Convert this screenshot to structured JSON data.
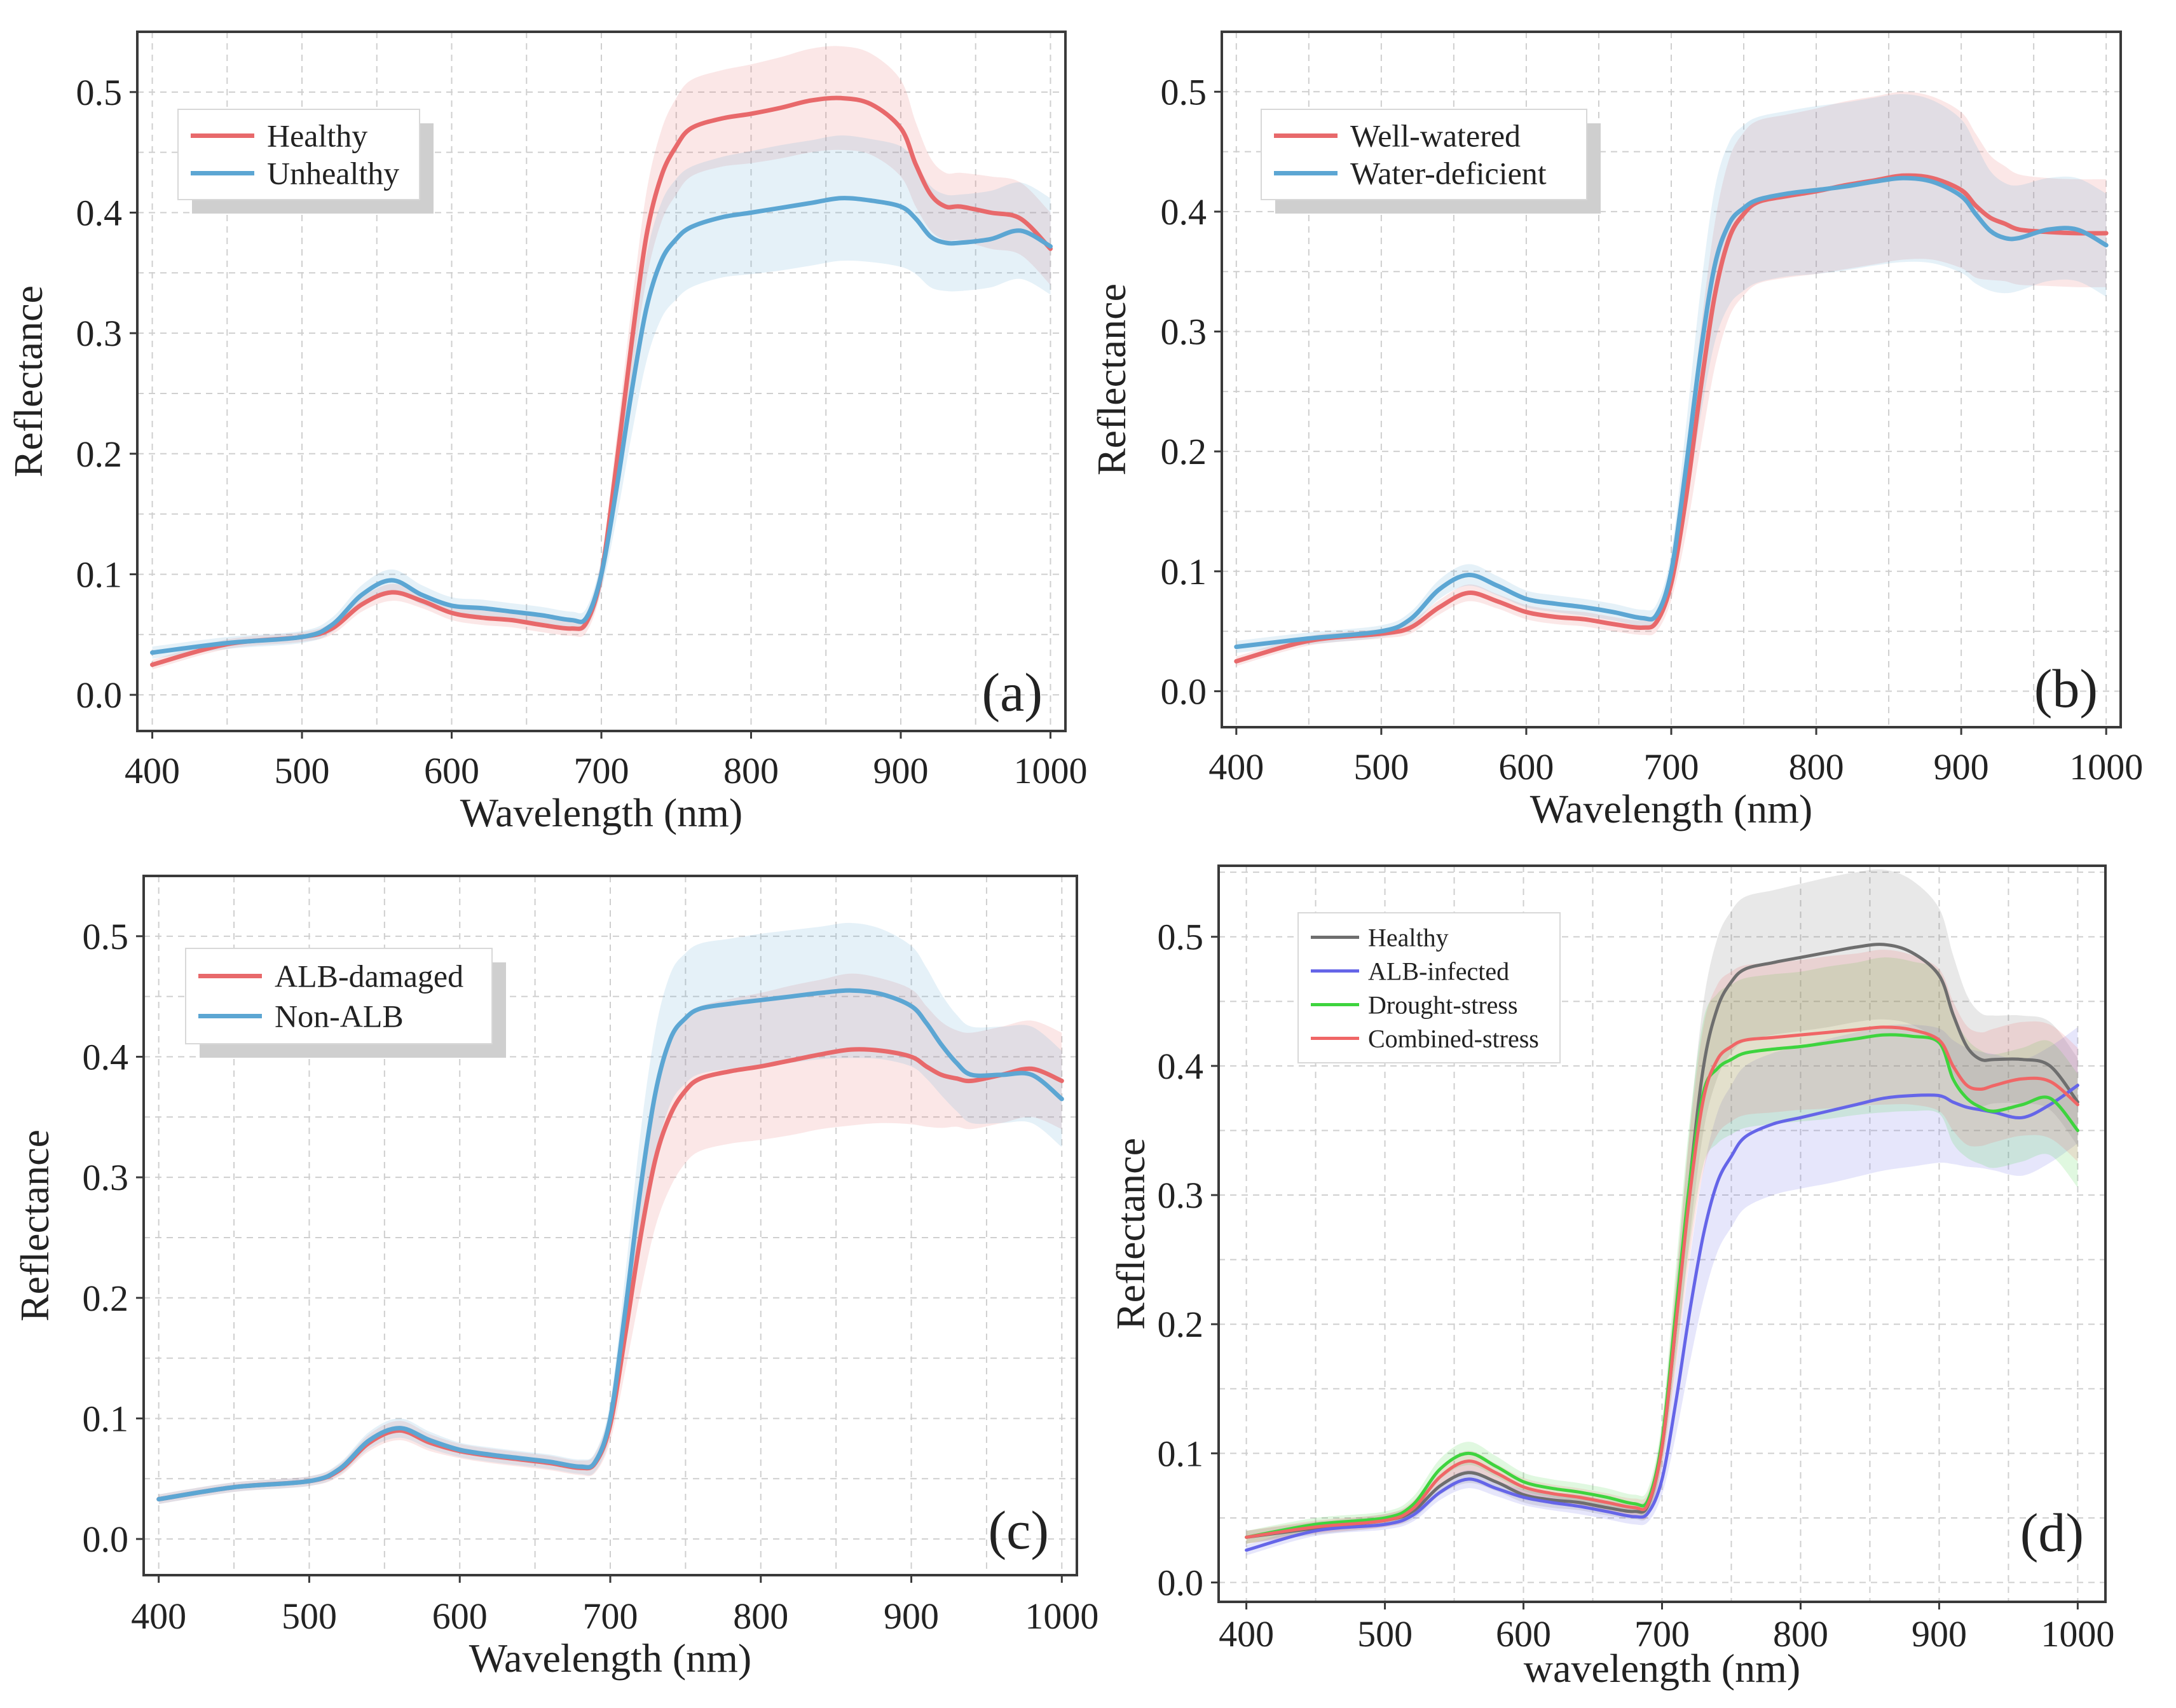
{
  "chart_data": [
    {
      "type": "line",
      "panel_label": "(a)",
      "xlabel": "Wavelength (nm)",
      "ylabel": "Reflectance",
      "xlim": [
        390,
        1010
      ],
      "ylim": [
        -0.03,
        0.55
      ],
      "xticks": [
        "400",
        "500",
        "600",
        "700",
        "800",
        "900",
        "1000"
      ],
      "yticks": [
        "0.0",
        "0.1",
        "0.2",
        "0.3",
        "0.4",
        "0.5"
      ],
      "grid": true,
      "legend_position": "top-left",
      "x": [
        400,
        450,
        500,
        520,
        540,
        560,
        580,
        600,
        620,
        640,
        660,
        680,
        690,
        700,
        710,
        720,
        730,
        740,
        750,
        760,
        780,
        800,
        820,
        840,
        860,
        880,
        900,
        910,
        920,
        930,
        940,
        960,
        980,
        1000
      ],
      "series": [
        {
          "name": "Healthy",
          "color": "#e8696b",
          "values": [
            0.025,
            0.042,
            0.048,
            0.055,
            0.075,
            0.085,
            0.078,
            0.068,
            0.064,
            0.062,
            0.058,
            0.055,
            0.06,
            0.1,
            0.19,
            0.29,
            0.38,
            0.43,
            0.455,
            0.47,
            0.478,
            0.482,
            0.487,
            0.493,
            0.495,
            0.49,
            0.47,
            0.44,
            0.415,
            0.405,
            0.405,
            0.4,
            0.395,
            0.37
          ],
          "spread": [
            0.004,
            0.004,
            0.004,
            0.005,
            0.006,
            0.007,
            0.006,
            0.006,
            0.006,
            0.006,
            0.006,
            0.006,
            0.008,
            0.012,
            0.022,
            0.03,
            0.036,
            0.038,
            0.04,
            0.04,
            0.04,
            0.041,
            0.042,
            0.043,
            0.043,
            0.042,
            0.04,
            0.035,
            0.03,
            0.028,
            0.028,
            0.03,
            0.03,
            0.03
          ]
        },
        {
          "name": "Unhealthy",
          "color": "#5ca6d3",
          "values": [
            0.035,
            0.043,
            0.048,
            0.058,
            0.083,
            0.095,
            0.083,
            0.074,
            0.072,
            0.069,
            0.066,
            0.062,
            0.064,
            0.1,
            0.17,
            0.25,
            0.32,
            0.36,
            0.378,
            0.388,
            0.396,
            0.4,
            0.404,
            0.408,
            0.412,
            0.41,
            0.405,
            0.395,
            0.38,
            0.375,
            0.375,
            0.378,
            0.385,
            0.372
          ],
          "spread": [
            0.005,
            0.005,
            0.005,
            0.006,
            0.008,
            0.009,
            0.008,
            0.007,
            0.007,
            0.007,
            0.007,
            0.007,
            0.008,
            0.013,
            0.025,
            0.036,
            0.044,
            0.048,
            0.05,
            0.05,
            0.05,
            0.051,
            0.052,
            0.052,
            0.052,
            0.051,
            0.05,
            0.046,
            0.042,
            0.04,
            0.04,
            0.04,
            0.04,
            0.04
          ]
        }
      ]
    },
    {
      "type": "line",
      "panel_label": "(b)",
      "xlabel": "Wavelength (nm)",
      "ylabel": "Reflectance",
      "xlim": [
        390,
        1010
      ],
      "ylim": [
        -0.03,
        0.55
      ],
      "xticks": [
        "400",
        "500",
        "600",
        "700",
        "800",
        "900",
        "1000"
      ],
      "yticks": [
        "0.0",
        "0.1",
        "0.2",
        "0.3",
        "0.4",
        "0.5"
      ],
      "grid": true,
      "legend_position": "top-left",
      "x": [
        400,
        450,
        500,
        520,
        540,
        560,
        580,
        600,
        620,
        640,
        660,
        680,
        690,
        700,
        710,
        720,
        730,
        740,
        750,
        760,
        780,
        800,
        820,
        840,
        860,
        880,
        900,
        910,
        920,
        930,
        940,
        960,
        980,
        1000
      ],
      "series": [
        {
          "name": "Well-watered",
          "color": "#e8696b",
          "values": [
            0.025,
            0.042,
            0.048,
            0.053,
            0.07,
            0.082,
            0.075,
            0.066,
            0.062,
            0.06,
            0.056,
            0.053,
            0.058,
            0.09,
            0.16,
            0.25,
            0.33,
            0.378,
            0.398,
            0.408,
            0.413,
            0.417,
            0.422,
            0.426,
            0.43,
            0.428,
            0.418,
            0.405,
            0.395,
            0.39,
            0.385,
            0.383,
            0.382,
            0.382
          ],
          "spread": [
            0.004,
            0.004,
            0.004,
            0.005,
            0.006,
            0.007,
            0.006,
            0.006,
            0.006,
            0.006,
            0.006,
            0.006,
            0.008,
            0.014,
            0.03,
            0.048,
            0.06,
            0.066,
            0.068,
            0.068,
            0.068,
            0.069,
            0.07,
            0.07,
            0.07,
            0.068,
            0.065,
            0.06,
            0.052,
            0.048,
            0.046,
            0.045,
            0.045,
            0.045
          ]
        },
        {
          "name": "Water-deficient",
          "color": "#5ca6d3",
          "values": [
            0.037,
            0.044,
            0.05,
            0.06,
            0.085,
            0.097,
            0.088,
            0.077,
            0.073,
            0.07,
            0.066,
            0.061,
            0.064,
            0.1,
            0.185,
            0.28,
            0.355,
            0.39,
            0.403,
            0.41,
            0.415,
            0.418,
            0.421,
            0.425,
            0.428,
            0.425,
            0.413,
            0.398,
            0.384,
            0.378,
            0.378,
            0.385,
            0.385,
            0.372
          ],
          "spread": [
            0.005,
            0.005,
            0.005,
            0.006,
            0.008,
            0.009,
            0.008,
            0.007,
            0.007,
            0.007,
            0.007,
            0.007,
            0.009,
            0.016,
            0.034,
            0.052,
            0.064,
            0.068,
            0.069,
            0.069,
            0.069,
            0.07,
            0.07,
            0.07,
            0.07,
            0.068,
            0.064,
            0.058,
            0.05,
            0.046,
            0.044,
            0.043,
            0.043,
            0.043
          ]
        }
      ]
    },
    {
      "type": "line",
      "panel_label": "(c)",
      "xlabel": "Wavelength (nm)",
      "ylabel": "Reflectance",
      "xlim": [
        390,
        1010
      ],
      "ylim": [
        -0.03,
        0.55
      ],
      "xticks": [
        "400",
        "500",
        "600",
        "700",
        "800",
        "900",
        "1000"
      ],
      "yticks": [
        "0.0",
        "0.1",
        "0.2",
        "0.3",
        "0.4",
        "0.5"
      ],
      "grid": true,
      "legend_position": "top-left",
      "x": [
        400,
        450,
        500,
        520,
        540,
        560,
        580,
        600,
        620,
        640,
        660,
        680,
        690,
        700,
        710,
        720,
        730,
        740,
        750,
        760,
        780,
        800,
        820,
        840,
        860,
        880,
        900,
        910,
        920,
        930,
        940,
        960,
        980,
        1000
      ],
      "series": [
        {
          "name": "ALB-damaged",
          "color": "#e8696b",
          "values": [
            0.033,
            0.043,
            0.048,
            0.057,
            0.08,
            0.09,
            0.08,
            0.073,
            0.069,
            0.066,
            0.063,
            0.059,
            0.063,
            0.095,
            0.17,
            0.25,
            0.315,
            0.352,
            0.372,
            0.382,
            0.388,
            0.392,
            0.397,
            0.402,
            0.406,
            0.405,
            0.4,
            0.392,
            0.385,
            0.382,
            0.38,
            0.385,
            0.39,
            0.38
          ],
          "spread": [
            0.004,
            0.004,
            0.004,
            0.005,
            0.007,
            0.008,
            0.007,
            0.006,
            0.006,
            0.006,
            0.006,
            0.006,
            0.008,
            0.014,
            0.03,
            0.046,
            0.056,
            0.06,
            0.06,
            0.06,
            0.06,
            0.061,
            0.062,
            0.062,
            0.063,
            0.06,
            0.056,
            0.05,
            0.044,
            0.04,
            0.04,
            0.04,
            0.04,
            0.04
          ]
        },
        {
          "name": "Non-ALB",
          "color": "#5ca6d3",
          "values": [
            0.033,
            0.043,
            0.048,
            0.058,
            0.082,
            0.092,
            0.082,
            0.074,
            0.07,
            0.067,
            0.064,
            0.06,
            0.064,
            0.1,
            0.19,
            0.29,
            0.37,
            0.415,
            0.432,
            0.44,
            0.444,
            0.447,
            0.45,
            0.453,
            0.455,
            0.452,
            0.442,
            0.428,
            0.41,
            0.395,
            0.385,
            0.385,
            0.385,
            0.365
          ],
          "spread": [
            0.004,
            0.004,
            0.004,
            0.005,
            0.007,
            0.008,
            0.007,
            0.006,
            0.006,
            0.006,
            0.006,
            0.006,
            0.008,
            0.014,
            0.03,
            0.046,
            0.052,
            0.054,
            0.054,
            0.054,
            0.054,
            0.055,
            0.055,
            0.055,
            0.056,
            0.054,
            0.05,
            0.046,
            0.042,
            0.04,
            0.04,
            0.04,
            0.04,
            0.04
          ]
        }
      ]
    },
    {
      "type": "line",
      "panel_label": "(d)",
      "xlabel": "wavelength (nm)",
      "ylabel": "Reflectance",
      "xlim": [
        380,
        1020
      ],
      "ylim": [
        -0.015,
        0.555
      ],
      "xticks": [
        "400",
        "500",
        "600",
        "700",
        "800",
        "900",
        "1000"
      ],
      "yticks": [
        "0.0",
        "0.1",
        "0.2",
        "0.3",
        "0.4",
        "0.5"
      ],
      "grid": true,
      "legend_position": "top-left",
      "x": [
        400,
        450,
        500,
        520,
        540,
        560,
        580,
        600,
        620,
        640,
        660,
        680,
        690,
        700,
        710,
        720,
        730,
        740,
        750,
        760,
        780,
        800,
        820,
        840,
        860,
        880,
        900,
        910,
        920,
        930,
        940,
        960,
        980,
        1000
      ],
      "series": [
        {
          "name": "Healthy",
          "color": "#6e6e6e",
          "values": [
            0.035,
            0.042,
            0.048,
            0.055,
            0.075,
            0.085,
            0.078,
            0.068,
            0.064,
            0.062,
            0.058,
            0.055,
            0.06,
            0.105,
            0.2,
            0.31,
            0.4,
            0.445,
            0.465,
            0.475,
            0.48,
            0.484,
            0.488,
            0.492,
            0.494,
            0.488,
            0.47,
            0.44,
            0.415,
            0.405,
            0.405,
            0.405,
            0.4,
            0.372
          ],
          "spread": [
            0.005,
            0.005,
            0.005,
            0.006,
            0.007,
            0.008,
            0.007,
            0.006,
            0.006,
            0.006,
            0.006,
            0.006,
            0.008,
            0.014,
            0.03,
            0.042,
            0.05,
            0.054,
            0.055,
            0.056,
            0.056,
            0.057,
            0.058,
            0.058,
            0.058,
            0.056,
            0.052,
            0.046,
            0.04,
            0.036,
            0.034,
            0.034,
            0.034,
            0.034
          ]
        },
        {
          "name": "ALB-infected",
          "color": "#6565e8",
          "values": [
            0.025,
            0.04,
            0.045,
            0.052,
            0.07,
            0.08,
            0.073,
            0.066,
            0.062,
            0.059,
            0.055,
            0.051,
            0.054,
            0.08,
            0.14,
            0.21,
            0.27,
            0.31,
            0.33,
            0.345,
            0.355,
            0.36,
            0.365,
            0.37,
            0.375,
            0.377,
            0.377,
            0.372,
            0.368,
            0.366,
            0.364,
            0.36,
            0.37,
            0.385
          ],
          "spread": [
            0.004,
            0.004,
            0.004,
            0.005,
            0.006,
            0.007,
            0.006,
            0.006,
            0.006,
            0.006,
            0.006,
            0.006,
            0.007,
            0.012,
            0.026,
            0.04,
            0.05,
            0.054,
            0.055,
            0.055,
            0.055,
            0.055,
            0.056,
            0.056,
            0.056,
            0.055,
            0.052,
            0.048,
            0.046,
            0.045,
            0.045,
            0.045,
            0.045,
            0.045
          ]
        },
        {
          "name": "Drought-stress",
          "color": "#3ed43e",
          "values": [
            0.035,
            0.045,
            0.05,
            0.06,
            0.088,
            0.1,
            0.09,
            0.078,
            0.073,
            0.07,
            0.066,
            0.061,
            0.064,
            0.11,
            0.21,
            0.31,
            0.38,
            0.398,
            0.405,
            0.41,
            0.413,
            0.415,
            0.418,
            0.421,
            0.424,
            0.423,
            0.418,
            0.39,
            0.375,
            0.368,
            0.365,
            0.37,
            0.375,
            0.35
          ],
          "spread": [
            0.005,
            0.005,
            0.005,
            0.006,
            0.008,
            0.009,
            0.008,
            0.007,
            0.007,
            0.007,
            0.007,
            0.007,
            0.009,
            0.016,
            0.034,
            0.048,
            0.056,
            0.058,
            0.058,
            0.058,
            0.058,
            0.058,
            0.059,
            0.059,
            0.06,
            0.058,
            0.055,
            0.05,
            0.046,
            0.044,
            0.044,
            0.044,
            0.044,
            0.044
          ]
        },
        {
          "name": "Combined-stress",
          "color": "#f06666",
          "values": [
            0.035,
            0.043,
            0.048,
            0.057,
            0.082,
            0.094,
            0.085,
            0.074,
            0.069,
            0.066,
            0.062,
            0.058,
            0.061,
            0.105,
            0.2,
            0.3,
            0.375,
            0.405,
            0.415,
            0.42,
            0.422,
            0.424,
            0.426,
            0.428,
            0.43,
            0.428,
            0.42,
            0.4,
            0.385,
            0.382,
            0.385,
            0.39,
            0.388,
            0.37
          ],
          "spread": [
            0.005,
            0.005,
            0.005,
            0.006,
            0.007,
            0.008,
            0.007,
            0.007,
            0.007,
            0.007,
            0.007,
            0.007,
            0.009,
            0.016,
            0.034,
            0.048,
            0.056,
            0.058,
            0.058,
            0.058,
            0.058,
            0.058,
            0.059,
            0.059,
            0.06,
            0.058,
            0.055,
            0.05,
            0.046,
            0.044,
            0.044,
            0.044,
            0.044,
            0.044
          ]
        }
      ]
    }
  ]
}
